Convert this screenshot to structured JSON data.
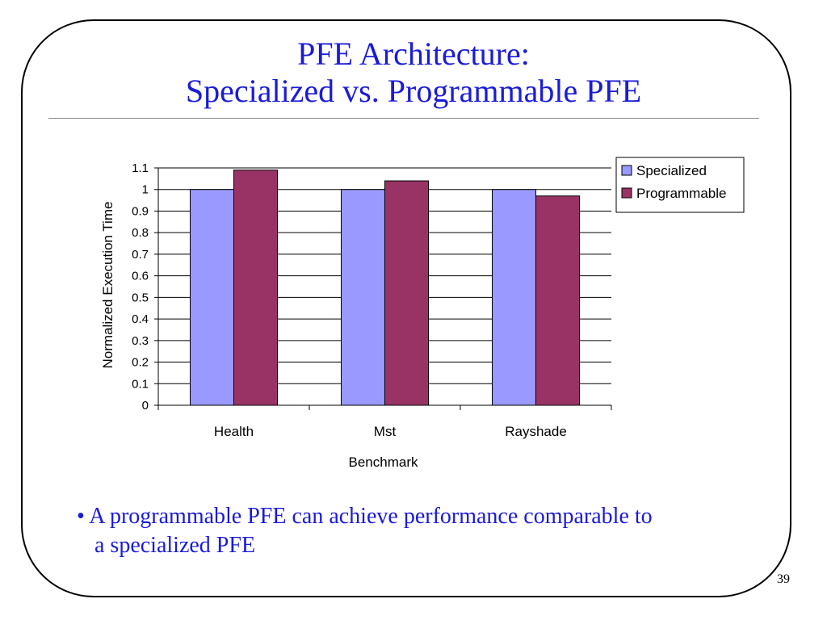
{
  "slide": {
    "title_line1": "PFE Architecture:",
    "title_line2": "Specialized vs. Programmable PFE",
    "bullet_marker": "•",
    "bullet_line1": "A programmable PFE can achieve performance comparable to",
    "bullet_line2": "a specialized PFE",
    "page_number": "39",
    "title_color": "#1a1adb"
  },
  "chart_data": {
    "type": "bar",
    "categories": [
      "Health",
      "Mst",
      "Rayshade"
    ],
    "series": [
      {
        "name": "Specialized",
        "values": [
          1.0,
          1.0,
          1.0
        ],
        "color": "#9999ff"
      },
      {
        "name": "Programmable",
        "values": [
          1.09,
          1.04,
          0.97
        ],
        "color": "#993366"
      }
    ],
    "xlabel": "Benchmark",
    "ylabel": "Normalized Execution Time",
    "ylim": [
      0,
      1.1
    ],
    "yticks": [
      "0",
      "0.1",
      "0.2",
      "0.3",
      "0.4",
      "0.5",
      "0.6",
      "0.7",
      "0.8",
      "0.9",
      "1",
      "1.1"
    ],
    "grid": true,
    "legend_position": "top-right"
  }
}
